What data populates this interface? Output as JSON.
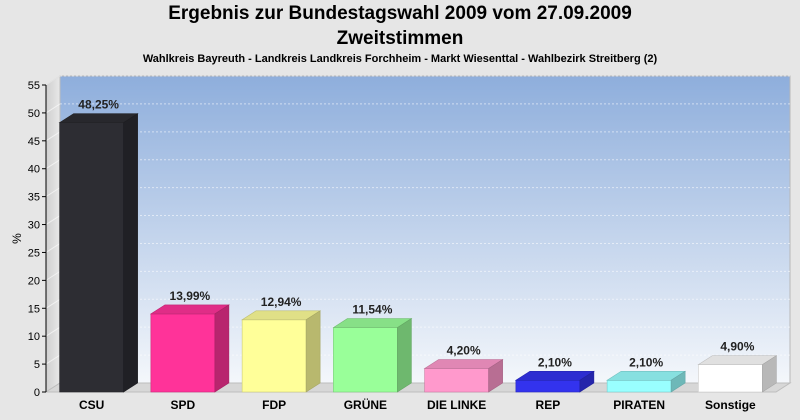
{
  "header": {
    "title_line1": "Ergebnis zur Bundestagswahl 2009 vom 27.09.2009",
    "title_line2": "Zweitstimmen",
    "subtitle": "Wahlkreis Bayreuth - Landkreis Landkreis Forchheim - Markt Wiesenttal - Wahlbezirk Streitberg (2)"
  },
  "chart_data": {
    "type": "bar",
    "title": "Ergebnis zur Bundestagswahl 2009 vom 27.09.2009",
    "subtitle": "Zweitstimmen",
    "xlabel": "",
    "ylabel": "%",
    "ylim": [
      0,
      55
    ],
    "yticks": [
      0,
      5,
      10,
      15,
      20,
      25,
      30,
      35,
      40,
      45,
      50,
      55
    ],
    "grid": true,
    "categories": [
      "CSU",
      "SPD",
      "FDP",
      "GRÜNE",
      "DIE LINKE",
      "REP",
      "PIRATEN",
      "Sonstige"
    ],
    "values": [
      48.25,
      13.99,
      12.94,
      11.54,
      4.2,
      2.1,
      2.1,
      4.9
    ],
    "value_labels": [
      "48,25%",
      "13,99%",
      "12,94%",
      "11,54%",
      "4,20%",
      "2,10%",
      "2,10%",
      "4,90%"
    ],
    "colors": [
      "#2d2d33",
      "#ff3399",
      "#ffff99",
      "#99ff99",
      "#ff99cc",
      "#3333ee",
      "#99ffff",
      "#ffffff"
    ]
  }
}
